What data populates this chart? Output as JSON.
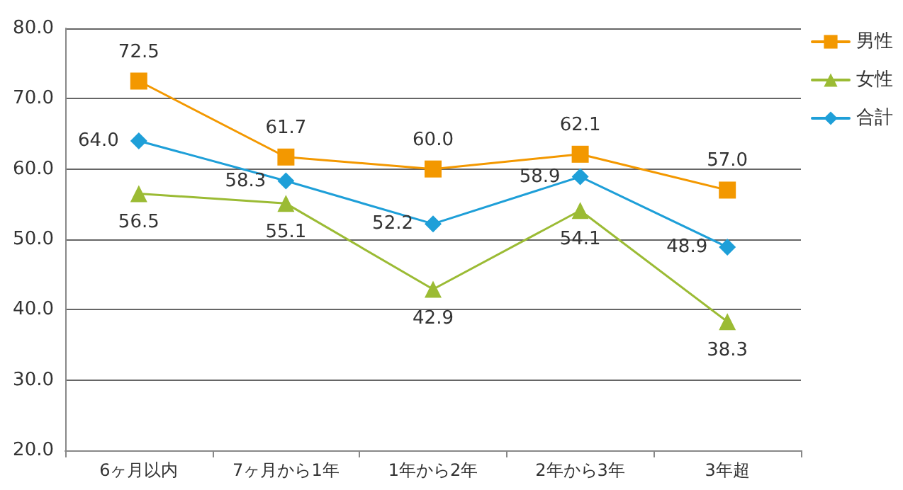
{
  "chart_data": {
    "type": "line",
    "categories": [
      "6ヶ月以内",
      "7ヶ月から1年",
      "1年から2年",
      "2年から3年",
      "3年超"
    ],
    "series": [
      {
        "name": "男性",
        "color": "#f39800",
        "marker": "square",
        "values": [
          72.5,
          61.7,
          60.0,
          62.1,
          57.0
        ],
        "value_labels": [
          "72.5",
          "61.7",
          "60.0",
          "62.1",
          "57.0"
        ]
      },
      {
        "name": "女性",
        "color": "#9bbb34",
        "marker": "triangle",
        "values": [
          56.5,
          55.1,
          42.9,
          54.1,
          38.3
        ],
        "value_labels": [
          "56.5",
          "55.1",
          "42.9",
          "54.1",
          "38.3"
        ]
      },
      {
        "name": "合計",
        "color": "#1e9fd8",
        "marker": "diamond",
        "values": [
          64.0,
          58.3,
          52.2,
          58.9,
          48.9
        ],
        "value_labels": [
          "64.0",
          "58.3",
          "52.2",
          "58.9",
          "48.9"
        ]
      }
    ],
    "ylim": [
      20,
      80
    ],
    "yticks": [
      {
        "value": 20,
        "label": "20.0"
      },
      {
        "value": 30,
        "label": "30.0"
      },
      {
        "value": 40,
        "label": "40.0"
      },
      {
        "value": 50,
        "label": "50.0"
      },
      {
        "value": 60,
        "label": "60.0"
      },
      {
        "value": 70,
        "label": "70.0"
      },
      {
        "value": 80,
        "label": "80.0"
      }
    ],
    "grid": "y",
    "legend": "top right",
    "line_style": "solid"
  }
}
